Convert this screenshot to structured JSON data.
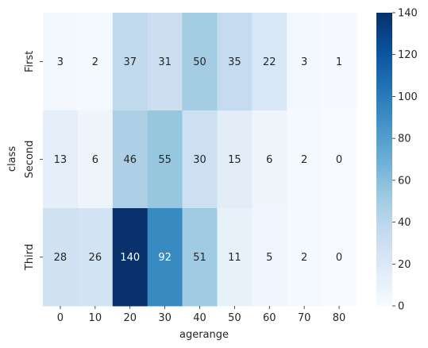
{
  "chart_data": {
    "type": "heatmap",
    "xlabel": "agerange",
    "ylabel": "class",
    "x": [
      "0",
      "10",
      "20",
      "30",
      "40",
      "50",
      "60",
      "70",
      "80"
    ],
    "y": [
      "First",
      "Second",
      "Third"
    ],
    "values": [
      [
        3,
        2,
        37,
        31,
        50,
        35,
        22,
        3,
        1
      ],
      [
        13,
        6,
        46,
        55,
        30,
        15,
        6,
        2,
        0
      ],
      [
        28,
        26,
        140,
        92,
        51,
        11,
        5,
        2,
        0
      ]
    ],
    "colorbar": {
      "min": 0,
      "max": 140,
      "ticks": [
        "0",
        "20",
        "40",
        "60",
        "80",
        "100",
        "120",
        "140"
      ],
      "colormap": "Blues"
    },
    "annotations": true
  }
}
